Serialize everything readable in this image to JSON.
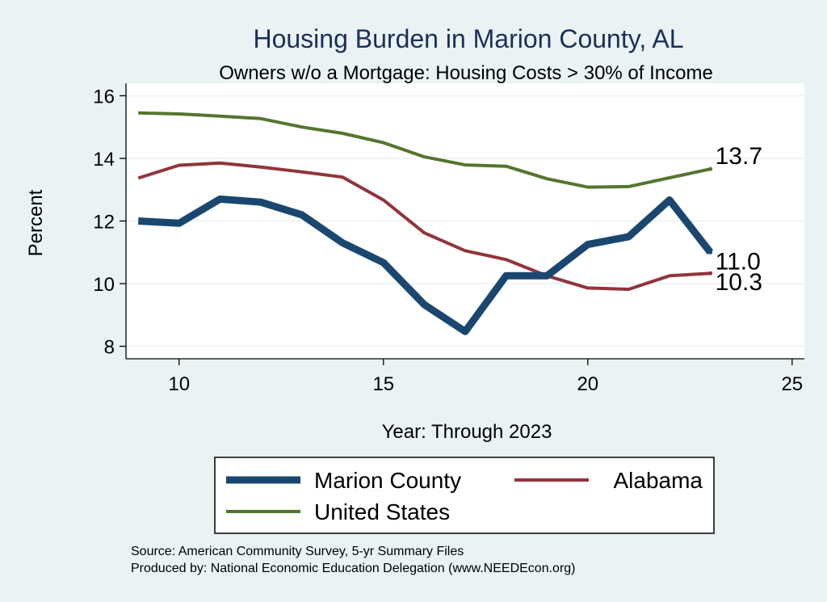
{
  "chart_data": {
    "type": "line",
    "title": "Housing Burden in Marion County, AL",
    "subtitle": "Owners w/o a Mortgage: Housing Costs > 30% of Income",
    "xlabel": "Year: Through 2023",
    "ylabel": "Percent",
    "xlim": [
      8.7,
      25.3
    ],
    "ylim": [
      7.6,
      16.4
    ],
    "xticks": [
      10,
      15,
      20,
      25
    ],
    "yticks": [
      8,
      10,
      12,
      14,
      16
    ],
    "grid": true,
    "legend_position": "bottom",
    "x": [
      9,
      10,
      11,
      12,
      13,
      14,
      15,
      16,
      17,
      18,
      19,
      20,
      21,
      22,
      23
    ],
    "series": [
      {
        "name": "Marion County",
        "color": "#1a476f",
        "values": [
          12.0,
          11.93,
          12.7,
          12.6,
          12.2,
          11.3,
          10.67,
          9.33,
          8.47,
          10.25,
          10.25,
          11.25,
          11.5,
          12.67,
          11.0
        ],
        "end_label": "11.0"
      },
      {
        "name": "Alabama",
        "color": "#90353b",
        "values": [
          13.37,
          13.78,
          13.85,
          13.72,
          13.57,
          13.4,
          12.67,
          11.62,
          11.05,
          10.77,
          10.25,
          9.86,
          9.82,
          10.25,
          10.33
        ],
        "end_label": "10.3"
      },
      {
        "name": "United States",
        "color": "#55752f",
        "values": [
          15.45,
          15.42,
          15.35,
          15.27,
          15.0,
          14.8,
          14.5,
          14.05,
          13.79,
          13.75,
          13.35,
          13.08,
          13.1,
          13.38,
          13.66
        ],
        "end_label": "13.7"
      }
    ],
    "source_lines": [
      "Source: American Community Survey, 5-yr Summary Files",
      "Produced by: National Economic Education Delegation (www.NEEDEcon.org)"
    ]
  }
}
